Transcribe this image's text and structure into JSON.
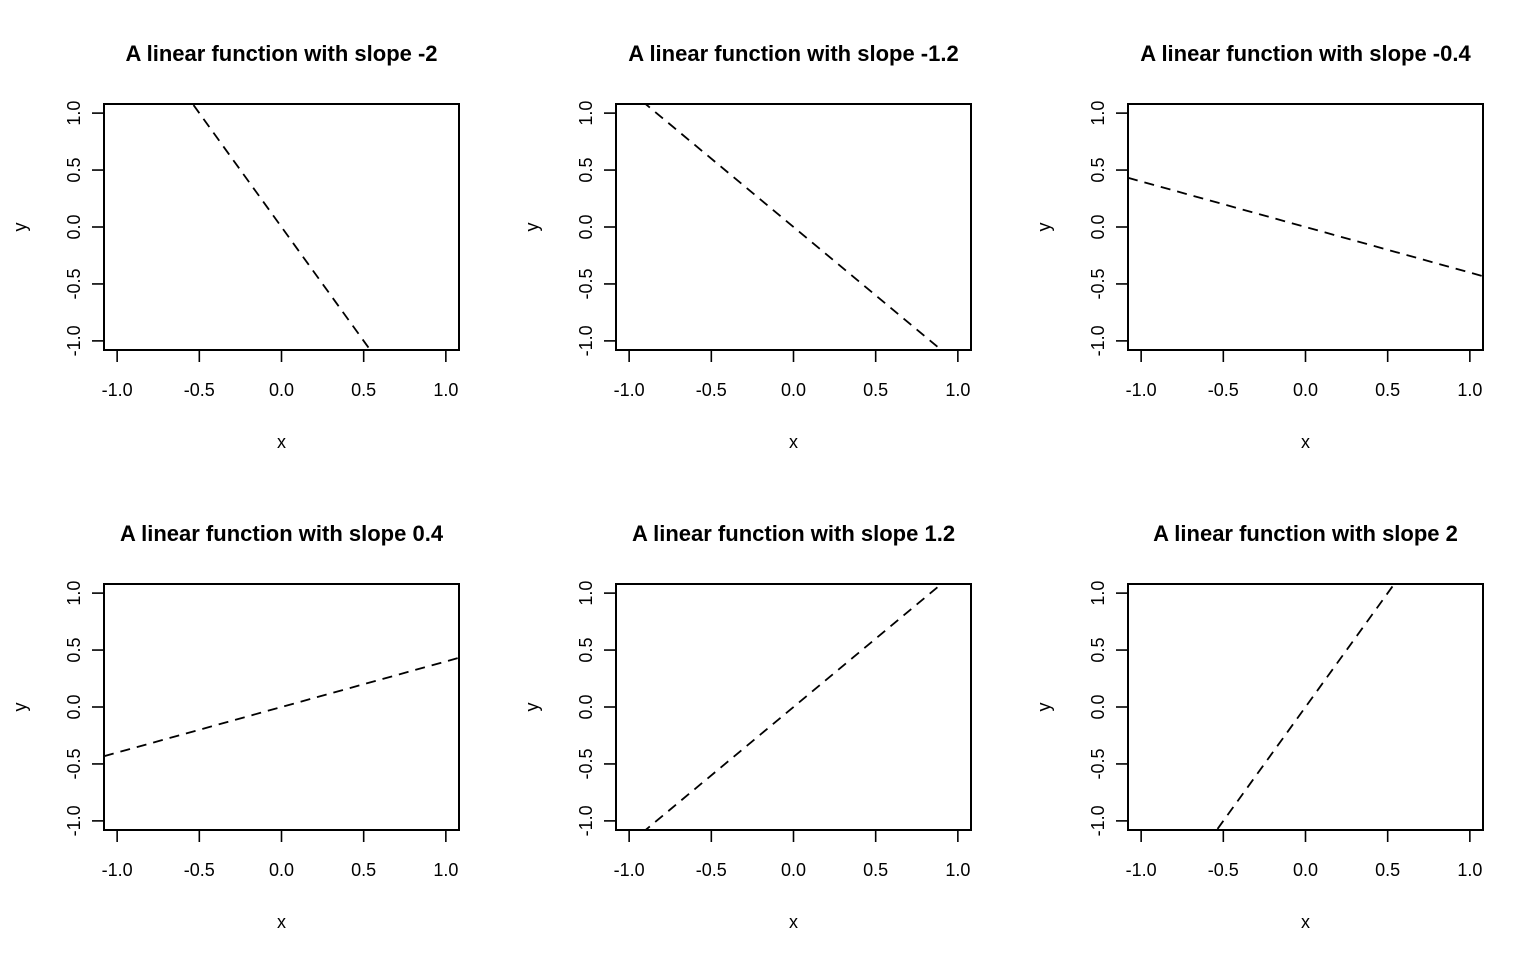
{
  "chart_data": [
    {
      "type": "line",
      "title": "A linear function with slope  -2",
      "xlabel": "x",
      "ylabel": "y",
      "xlim": [
        -1.08,
        1.08
      ],
      "ylim": [
        -1.08,
        1.08
      ],
      "xticks": [
        "-1.0",
        "-0.5",
        "0.0",
        "0.5",
        "1.0"
      ],
      "yticks": [
        "-1.0",
        "-0.5",
        "0.0",
        "0.5",
        "1.0"
      ],
      "grid": false,
      "line_style": "dashed",
      "series": [
        {
          "slope": -2,
          "intercept": 0
        }
      ]
    },
    {
      "type": "line",
      "title": "A linear function with slope  -1.2",
      "xlabel": "x",
      "ylabel": "y",
      "xlim": [
        -1.08,
        1.08
      ],
      "ylim": [
        -1.08,
        1.08
      ],
      "xticks": [
        "-1.0",
        "-0.5",
        "0.0",
        "0.5",
        "1.0"
      ],
      "yticks": [
        "-1.0",
        "-0.5",
        "0.0",
        "0.5",
        "1.0"
      ],
      "grid": false,
      "line_style": "dashed",
      "series": [
        {
          "slope": -1.2,
          "intercept": 0
        }
      ]
    },
    {
      "type": "line",
      "title": "A linear function with slope  -0.4",
      "xlabel": "x",
      "ylabel": "y",
      "xlim": [
        -1.08,
        1.08
      ],
      "ylim": [
        -1.08,
        1.08
      ],
      "xticks": [
        "-1.0",
        "-0.5",
        "0.0",
        "0.5",
        "1.0"
      ],
      "yticks": [
        "-1.0",
        "-0.5",
        "0.0",
        "0.5",
        "1.0"
      ],
      "grid": false,
      "line_style": "dashed",
      "series": [
        {
          "slope": -0.4,
          "intercept": 0
        }
      ]
    },
    {
      "type": "line",
      "title": "A linear function with slope  0.4",
      "xlabel": "x",
      "ylabel": "y",
      "xlim": [
        -1.08,
        1.08
      ],
      "ylim": [
        -1.08,
        1.08
      ],
      "xticks": [
        "-1.0",
        "-0.5",
        "0.0",
        "0.5",
        "1.0"
      ],
      "yticks": [
        "-1.0",
        "-0.5",
        "0.0",
        "0.5",
        "1.0"
      ],
      "grid": false,
      "line_style": "dashed",
      "series": [
        {
          "slope": 0.4,
          "intercept": 0
        }
      ]
    },
    {
      "type": "line",
      "title": "A linear function with slope  1.2",
      "xlabel": "x",
      "ylabel": "y",
      "xlim": [
        -1.08,
        1.08
      ],
      "ylim": [
        -1.08,
        1.08
      ],
      "xticks": [
        "-1.0",
        "-0.5",
        "0.0",
        "0.5",
        "1.0"
      ],
      "yticks": [
        "-1.0",
        "-0.5",
        "0.0",
        "0.5",
        "1.0"
      ],
      "grid": false,
      "line_style": "dashed",
      "series": [
        {
          "slope": 1.2,
          "intercept": 0
        }
      ]
    },
    {
      "type": "line",
      "title": "A linear function with slope  2",
      "xlabel": "x",
      "ylabel": "y",
      "xlim": [
        -1.08,
        1.08
      ],
      "ylim": [
        -1.08,
        1.08
      ],
      "xticks": [
        "-1.0",
        "-0.5",
        "0.0",
        "0.5",
        "1.0"
      ],
      "yticks": [
        "-1.0",
        "-0.5",
        "0.0",
        "0.5",
        "1.0"
      ],
      "grid": false,
      "line_style": "dashed",
      "series": [
        {
          "slope": 2,
          "intercept": 0
        }
      ]
    }
  ]
}
